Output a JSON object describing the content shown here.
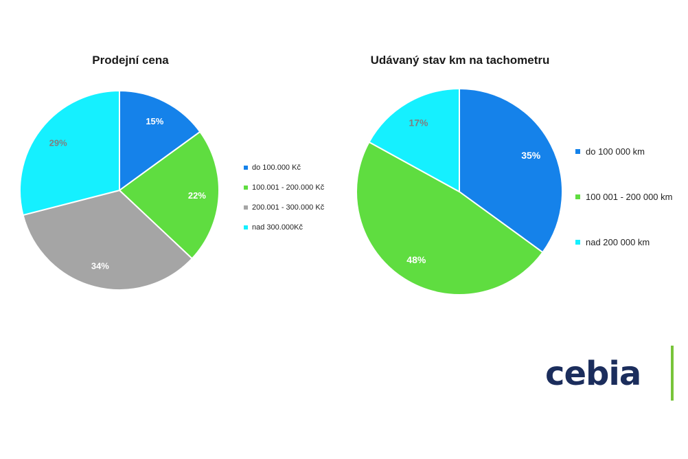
{
  "chart_data": [
    {
      "type": "pie",
      "title": "Prodejní cena",
      "categories": [
        "do 100.000 Kč",
        "100.001 - 200.000 Kč",
        "200.001 - 300.000 Kč",
        "nad 300.000Kč"
      ],
      "values": [
        15,
        22,
        34,
        29
      ],
      "value_labels": [
        "15%",
        "22%",
        "34%",
        "29%"
      ],
      "colors": [
        "#1582ea",
        "#5fdd40",
        "#a5a5a5",
        "#15f0ff"
      ],
      "label_colors": [
        "#ffffff",
        "#ffffff",
        "#ffffff",
        "#7f7f7f"
      ],
      "legend_position": "right"
    },
    {
      "type": "pie",
      "title": "Udávaný stav km na tachometru",
      "categories": [
        "do 100 000 km",
        "100 001 - 200 000 km",
        "nad 200 000 km"
      ],
      "values": [
        35,
        48,
        17
      ],
      "value_labels": [
        "35%",
        "48%",
        "17%"
      ],
      "colors": [
        "#1582ea",
        "#5fdd40",
        "#15f0ff"
      ],
      "label_colors": [
        "#ffffff",
        "#ffffff",
        "#7f7f7f"
      ],
      "legend_position": "right"
    }
  ],
  "logo": {
    "text": "cebia",
    "bar_color": "#78c43a",
    "text_color": "#1b2d5c"
  }
}
